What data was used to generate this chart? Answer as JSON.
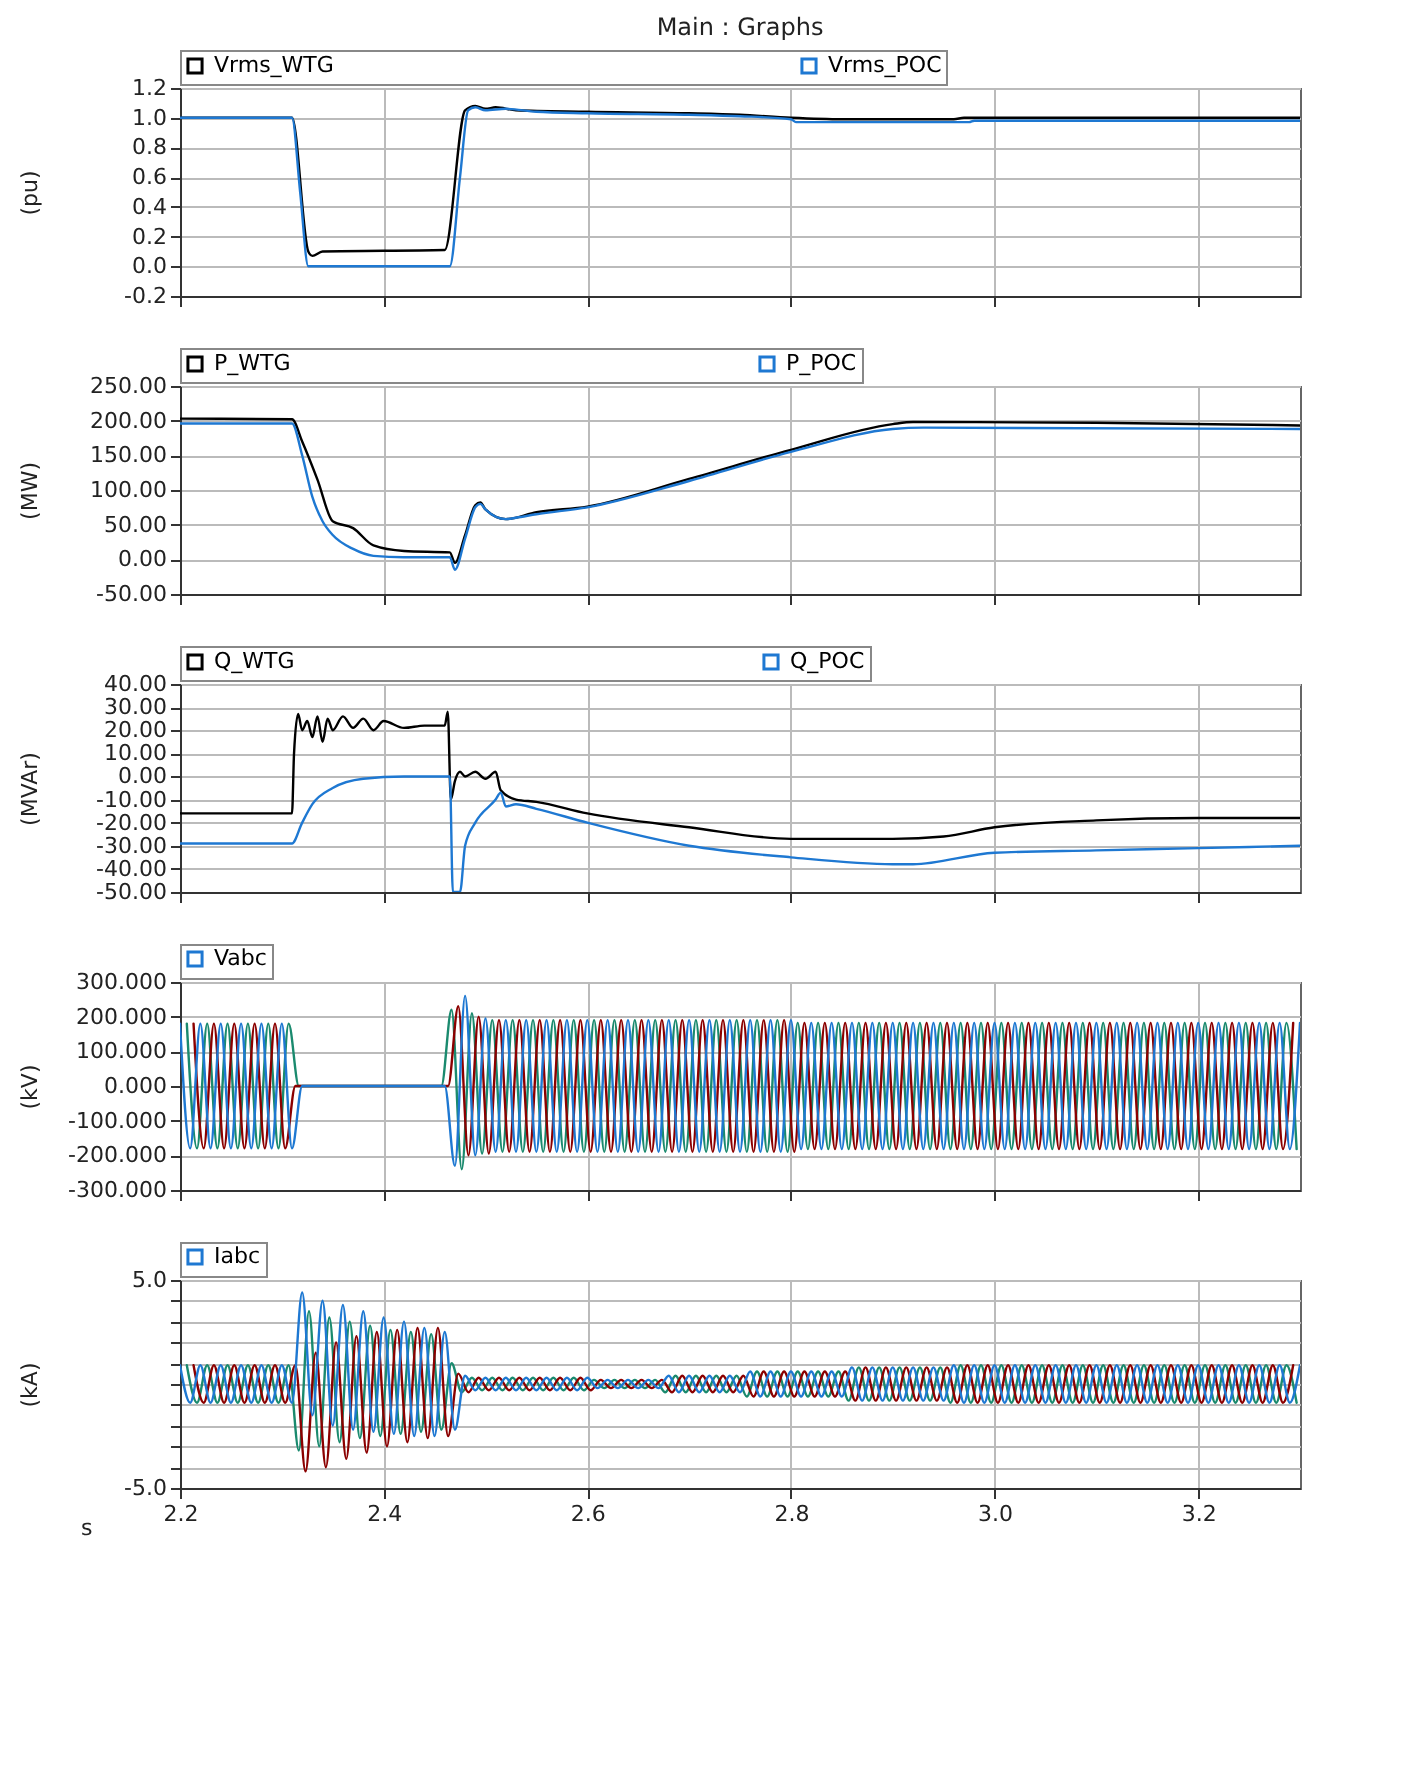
{
  "chart_data": [
    {
      "type": "line",
      "title": "Main : Graphs",
      "ylabel": "(pu)",
      "xlim": [
        2.2,
        3.3
      ],
      "xticks": [
        {
          "value": 2.2,
          "label": null
        },
        {
          "value": 2.4,
          "label": null
        },
        {
          "value": 2.6,
          "label": null
        },
        {
          "value": 2.8,
          "label": null
        },
        {
          "value": 3,
          "label": null
        },
        {
          "value": 3.2,
          "label": null
        }
      ],
      "ylim": [
        -0.2,
        1.2
      ],
      "yticks": [
        -0.2,
        {
          "value": 0,
          "label": "0.0"
        },
        0.2,
        0.4,
        0.6,
        0.8,
        {
          "value": 1,
          "label": "1.0"
        },
        1.2
      ],
      "grid": true,
      "legend": "top",
      "tick_labels": "y",
      "series": [
        {
          "name": "Vrms_WTG",
          "color": "#000000",
          "x": [
            2.2,
            2.31,
            2.326,
            2.33,
            2.34,
            2.46,
            2.48,
            2.49,
            2.5,
            2.51,
            2.53,
            2.6,
            2.7,
            2.75,
            2.8,
            2.85,
            2.96,
            2.97,
            3.3
          ],
          "values": [
            1.0,
            1.0,
            0.1,
            0.07,
            0.1,
            0.11,
            1.05,
            1.08,
            1.06,
            1.07,
            1.05,
            1.04,
            1.03,
            1.02,
            1.0,
            0.99,
            0.99,
            1.0,
            1.0
          ]
        },
        {
          "name": "Vrms_POC",
          "color": "#1e78d2",
          "x": [
            2.2,
            2.31,
            2.318,
            2.326,
            2.46,
            2.465,
            2.475,
            2.483,
            2.49,
            2.5,
            2.52,
            2.55,
            2.6,
            2.7,
            2.75,
            2.8,
            2.805,
            2.975,
            2.98,
            3.3
          ],
          "values": [
            1.0,
            1.0,
            0.5,
            0.0,
            0.0,
            0.0,
            0.6,
            1.05,
            1.07,
            1.05,
            1.06,
            1.04,
            1.03,
            1.02,
            1.01,
            0.99,
            0.97,
            0.97,
            0.98,
            0.98
          ]
        }
      ]
    },
    {
      "type": "line",
      "ylabel": "(MW)",
      "xlim": [
        2.2,
        3.3
      ],
      "xticks": [
        {
          "value": 2.2,
          "label": null
        },
        {
          "value": 2.4,
          "label": null
        },
        {
          "value": 2.6,
          "label": null
        },
        {
          "value": 2.8,
          "label": null
        },
        {
          "value": 3,
          "label": null
        },
        {
          "value": 3.2,
          "label": null
        }
      ],
      "ylim": [
        -50,
        250
      ],
      "yticks": [
        {
          "value": -50,
          "label": "-50.00"
        },
        {
          "value": 0,
          "label": "0.00"
        },
        {
          "value": 50,
          "label": "50.00"
        },
        {
          "value": 100,
          "label": "100.00"
        },
        {
          "value": 150,
          "label": "150.00"
        },
        {
          "value": 200,
          "label": "200.00"
        },
        {
          "value": 250,
          "label": "250.00"
        }
      ],
      "grid": true,
      "legend": "top",
      "tick_labels": "y",
      "series": [
        {
          "name": "P_WTG",
          "color": "#000000",
          "x": [
            2.2,
            2.31,
            2.32,
            2.335,
            2.35,
            2.37,
            2.39,
            2.42,
            2.465,
            2.47,
            2.48,
            2.49,
            2.495,
            2.5,
            2.52,
            2.55,
            2.6,
            2.7,
            2.8,
            2.9,
            2.92,
            3.1,
            3.3
          ],
          "values": [
            203,
            202,
            170,
            115,
            55,
            45,
            20,
            12,
            10,
            -5,
            35,
            78,
            82,
            72,
            58,
            68,
            76,
            116,
            158,
            195,
            198,
            197,
            193
          ]
        },
        {
          "name": "P_POC",
          "color": "#1e78d2",
          "x": [
            2.2,
            2.31,
            2.32,
            2.33,
            2.34,
            2.35,
            2.37,
            2.39,
            2.42,
            2.465,
            2.47,
            2.48,
            2.49,
            2.495,
            2.5,
            2.52,
            2.53,
            2.55,
            2.6,
            2.7,
            2.8,
            2.9,
            2.93,
            3.3
          ],
          "values": [
            196,
            196,
            150,
            90,
            55,
            35,
            15,
            5,
            3,
            3,
            -15,
            30,
            75,
            80,
            72,
            58,
            60,
            65,
            75,
            113,
            155,
            188,
            190,
            188
          ]
        }
      ]
    },
    {
      "type": "line",
      "ylabel": "(MVAr)",
      "xlim": [
        2.2,
        3.3
      ],
      "xticks": [
        {
          "value": 2.2,
          "label": null
        },
        {
          "value": 2.4,
          "label": null
        },
        {
          "value": 2.6,
          "label": null
        },
        {
          "value": 2.8,
          "label": null
        },
        {
          "value": 3,
          "label": null
        },
        {
          "value": 3.2,
          "label": null
        }
      ],
      "ylim": [
        -50,
        40
      ],
      "yticks": [
        {
          "value": -50,
          "label": "-50.00"
        },
        {
          "value": -40,
          "label": "-40.00"
        },
        {
          "value": -30,
          "label": "-30.00"
        },
        {
          "value": -20,
          "label": "-20.00"
        },
        {
          "value": -10,
          "label": "-10.00"
        },
        {
          "value": 0,
          "label": "0.00"
        },
        {
          "value": 10,
          "label": "10.00"
        },
        {
          "value": 20,
          "label": "20.00"
        },
        {
          "value": 30,
          "label": "30.00"
        },
        {
          "value": 40,
          "label": "40.00"
        }
      ],
      "grid": true,
      "legend": "top",
      "tick_labels": "y",
      "series": [
        {
          "name": "Q_WTG",
          "color": "#000000",
          "x": [
            2.2,
            2.31,
            2.312,
            2.316,
            2.32,
            2.325,
            2.33,
            2.335,
            2.34,
            2.345,
            2.35,
            2.36,
            2.37,
            2.38,
            2.39,
            2.4,
            2.42,
            2.44,
            2.46,
            2.463,
            2.466,
            2.47,
            2.475,
            2.48,
            2.49,
            2.5,
            2.51,
            2.515,
            2.53,
            2.55,
            2.6,
            2.7,
            2.8,
            2.9,
            2.95,
            3.0,
            3.1,
            3.2,
            3.3
          ],
          "values": [
            -16,
            -16,
            10,
            27,
            20,
            24,
            17,
            26,
            15,
            25,
            20,
            26,
            21,
            25,
            20,
            24,
            21,
            22,
            22,
            28,
            -10,
            -2,
            2,
            0,
            2,
            -1,
            2,
            -6,
            -10,
            -11,
            -16,
            -22,
            -27,
            -27,
            -26,
            -22,
            -19,
            -18,
            -18
          ]
        },
        {
          "name": "Q_POC",
          "color": "#1e78d2",
          "x": [
            2.2,
            2.31,
            2.32,
            2.33,
            2.35,
            2.38,
            2.42,
            2.465,
            2.468,
            2.475,
            2.48,
            2.49,
            2.51,
            2.515,
            2.52,
            2.53,
            2.55,
            2.6,
            2.7,
            2.8,
            2.9,
            2.92,
            3.0,
            3.1,
            3.2,
            3.3
          ],
          "values": [
            -29,
            -29,
            -20,
            -12,
            -5,
            -1,
            0,
            0,
            -50,
            -50,
            -30,
            -20,
            -10,
            -7,
            -13,
            -12,
            -14,
            -20,
            -30,
            -35,
            -38,
            -38,
            -33,
            -32,
            -31,
            -30
          ]
        }
      ]
    },
    {
      "type": "line",
      "ylabel": "(kV)",
      "xlim": [
        2.2,
        3.3
      ],
      "xticks": [
        {
          "value": 2.2,
          "label": null
        },
        {
          "value": 2.4,
          "label": null
        },
        {
          "value": 2.6,
          "label": null
        },
        {
          "value": 2.8,
          "label": null
        },
        {
          "value": 3,
          "label": null
        },
        {
          "value": 3.2,
          "label": null
        }
      ],
      "ylim": [
        -300,
        300
      ],
      "yticks": [
        {
          "value": -300,
          "label": "-300.000"
        },
        {
          "value": -200,
          "label": "-200.000"
        },
        {
          "value": -100,
          "label": "-100.000"
        },
        {
          "value": 0,
          "label": "0.000"
        },
        {
          "value": 100,
          "label": "100.000"
        },
        {
          "value": 200,
          "label": "200.000"
        },
        {
          "value": 300,
          "label": "300.000"
        }
      ],
      "grid": true,
      "legend": "top",
      "tick_labels": "y",
      "series": [
        {
          "color": "#1a8a6e",
          "x": [
            2.2067,
            2.2167,
            2.2267,
            2.2367,
            2.2467,
            2.2567,
            2.2667,
            2.2767,
            2.2867,
            2.2967,
            2.3067,
            2.3167,
            2.3267,
            2.3367,
            2.3467,
            2.3567,
            2.3667,
            2.3767,
            2.3867,
            2.3967,
            2.4067,
            2.4167,
            2.4267,
            2.4367,
            2.4467,
            2.4567,
            2.4667,
            2.4767,
            2.4867,
            2.4967,
            2.5067,
            2.5167,
            2.5267,
            2.5367,
            2.5467,
            2.5567,
            2.5667,
            2.5767,
            2.5867,
            2.5967,
            2.6067,
            2.6167,
            2.6267,
            2.6367,
            2.6467,
            2.6567,
            2.6667,
            2.6767,
            2.6867,
            2.6967,
            2.7067,
            2.7167,
            2.7267,
            2.7367,
            2.7467,
            2.7567,
            2.7667,
            2.7767,
            2.7867,
            2.7967,
            2.8067,
            2.8167,
            2.8267,
            2.8367,
            2.8467,
            2.8567,
            2.8667,
            2.8767,
            2.8867,
            2.8967,
            2.9067,
            2.9167,
            2.9267,
            2.9367,
            2.9467,
            2.9567,
            2.9667,
            2.9767,
            2.9867,
            2.9967,
            3.0067,
            3.0167,
            3.0267,
            3.0367,
            3.0467,
            3.0567,
            3.0667,
            3.0767,
            3.0867,
            3.0967,
            3.1067,
            3.1167,
            3.1267,
            3.1367,
            3.1467,
            3.1567,
            3.1667,
            3.1767,
            3.1867,
            3.1967,
            3.2067,
            3.2167,
            3.2267,
            3.2367,
            3.2467,
            3.2567,
            3.2667,
            3.2767,
            3.2867,
            3.2967
          ],
          "values": [
            180,
            -180,
            180,
            -180,
            180,
            -180,
            180,
            -180,
            180,
            -180,
            180,
            0,
            0,
            0,
            0,
            0,
            0,
            0,
            0,
            0,
            0,
            0,
            0,
            0,
            0,
            0,
            220,
            -240,
            210,
            -195,
            190,
            -190,
            190,
            -190,
            190,
            -190,
            190,
            -190,
            190,
            -190,
            190,
            -190,
            190,
            -190,
            190,
            -190,
            190,
            -190,
            190,
            -190,
            190,
            -190,
            190,
            -190,
            190,
            -190,
            190,
            -190,
            190,
            -190,
            182,
            -182,
            182,
            -182,
            182,
            -182,
            182,
            -182,
            182,
            -182,
            182,
            -182,
            182,
            -182,
            182,
            -182,
            182,
            -182,
            182,
            -182,
            182,
            -182,
            182,
            -182,
            182,
            -182,
            182,
            -182,
            182,
            -182,
            182,
            -182,
            182,
            -182,
            182,
            -182,
            182,
            -182,
            182,
            -182,
            182,
            -182,
            182,
            -182,
            182,
            -182,
            182,
            -182,
            182,
            -182
          ]
        },
        {
          "color": "#8b0000",
          "x": [
            2.2133,
            2.2233,
            2.2333,
            2.2433,
            2.2533,
            2.2633,
            2.2733,
            2.2833,
            2.2933,
            2.3033,
            2.3133,
            2.3233,
            2.3333,
            2.3433,
            2.3533,
            2.3633,
            2.3733,
            2.3833,
            2.3933,
            2.4033,
            2.4133,
            2.4233,
            2.4333,
            2.4433,
            2.4533,
            2.4633,
            2.4733,
            2.4833,
            2.4933,
            2.5033,
            2.5133,
            2.5233,
            2.5333,
            2.5433,
            2.5533,
            2.5633,
            2.5733,
            2.5833,
            2.5933,
            2.6033,
            2.6133,
            2.6233,
            2.6333,
            2.6433,
            2.6533,
            2.6633,
            2.6733,
            2.6833,
            2.6933,
            2.7033,
            2.7133,
            2.7233,
            2.7333,
            2.7433,
            2.7533,
            2.7633,
            2.7733,
            2.7833,
            2.7933,
            2.8033,
            2.8133,
            2.8233,
            2.8333,
            2.8433,
            2.8533,
            2.8633,
            2.8733,
            2.8833,
            2.8933,
            2.9033,
            2.9133,
            2.9233,
            2.9333,
            2.9433,
            2.9533,
            2.9633,
            2.9733,
            2.9833,
            2.9933,
            3.0033,
            3.0133,
            3.0233,
            3.0333,
            3.0433,
            3.0533,
            3.0633,
            3.0733,
            3.0833,
            3.0933,
            3.1033,
            3.1133,
            3.1233,
            3.1333,
            3.1433,
            3.1533,
            3.1633,
            3.1733,
            3.1833,
            3.1933,
            3.2033,
            3.2133,
            3.2233,
            3.2333,
            3.2433,
            3.2533,
            3.2633,
            3.2733,
            3.2833,
            3.2933
          ],
          "values": [
            180,
            -180,
            180,
            -180,
            180,
            -180,
            180,
            -180,
            180,
            -180,
            0,
            0,
            0,
            0,
            0,
            0,
            0,
            0,
            0,
            0,
            0,
            0,
            0,
            0,
            0,
            0,
            230,
            -200,
            200,
            -195,
            190,
            -190,
            190,
            -190,
            190,
            -190,
            190,
            -190,
            190,
            -190,
            190,
            -190,
            190,
            -190,
            190,
            -190,
            190,
            -190,
            190,
            -190,
            190,
            -190,
            190,
            -190,
            190,
            -190,
            190,
            -190,
            190,
            -190,
            182,
            -182,
            182,
            -182,
            182,
            -182,
            182,
            -182,
            182,
            -182,
            182,
            -182,
            182,
            -182,
            182,
            -182,
            182,
            -182,
            182,
            -182,
            182,
            -182,
            182,
            -182,
            182,
            -182,
            182,
            -182,
            182,
            -182,
            182,
            -182,
            182,
            -182,
            182,
            -182,
            182,
            -182,
            182,
            -182,
            182,
            -182,
            182,
            -182,
            182,
            -182,
            182,
            -182,
            182
          ]
        },
        {
          "name": "Vabc",
          "color": "#1e78d2",
          "x": [
            2.2,
            2.21,
            2.22,
            2.23,
            2.24,
            2.25,
            2.26,
            2.27,
            2.28,
            2.29,
            2.3,
            2.31,
            2.32,
            2.33,
            2.34,
            2.35,
            2.36,
            2.37,
            2.38,
            2.39,
            2.4,
            2.41,
            2.42,
            2.43,
            2.44,
            2.45,
            2.46,
            2.47,
            2.48,
            2.49,
            2.5,
            2.51,
            2.52,
            2.53,
            2.54,
            2.55,
            2.56,
            2.57,
            2.58,
            2.59,
            2.6,
            2.61,
            2.62,
            2.63,
            2.64,
            2.65,
            2.66,
            2.67,
            2.68,
            2.69,
            2.7,
            2.71,
            2.72,
            2.73,
            2.74,
            2.75,
            2.76,
            2.77,
            2.78,
            2.79,
            2.8,
            2.81,
            2.82,
            2.83,
            2.84,
            2.85,
            2.86,
            2.87,
            2.88,
            2.89,
            2.9,
            2.91,
            2.92,
            2.93,
            2.94,
            2.95,
            2.96,
            2.97,
            2.98,
            2.99,
            3.0,
            3.01,
            3.02,
            3.03,
            3.04,
            3.05,
            3.06,
            3.07,
            3.08,
            3.09,
            3.1,
            3.11,
            3.12,
            3.13,
            3.14,
            3.15,
            3.16,
            3.17,
            3.18,
            3.19,
            3.2,
            3.21,
            3.22,
            3.23,
            3.24,
            3.25,
            3.26,
            3.27,
            3.28,
            3.29,
            3.3
          ],
          "values": [
            180,
            -180,
            180,
            -180,
            180,
            -180,
            180,
            -180,
            180,
            -180,
            180,
            -180,
            0,
            0,
            0,
            0,
            0,
            0,
            0,
            0,
            0,
            0,
            0,
            0,
            0,
            0,
            0,
            -230,
            260,
            -200,
            195,
            -190,
            190,
            -190,
            190,
            -190,
            190,
            -190,
            190,
            -190,
            190,
            -190,
            190,
            -190,
            190,
            -190,
            190,
            -190,
            190,
            -190,
            190,
            -190,
            190,
            -190,
            190,
            -190,
            190,
            -190,
            190,
            -190,
            190,
            -182,
            182,
            -182,
            182,
            -182,
            182,
            -182,
            182,
            -182,
            182,
            -182,
            182,
            -182,
            182,
            -182,
            182,
            -182,
            182,
            -182,
            182,
            -182,
            182,
            -182,
            182,
            -182,
            182,
            -182,
            182,
            -182,
            182,
            -182,
            182,
            -182,
            182,
            -182,
            182,
            -182,
            182,
            -182,
            182,
            -182,
            182,
            -182,
            182,
            -182,
            182,
            -182,
            182,
            -182,
            182
          ]
        }
      ]
    },
    {
      "type": "line",
      "ylabel": "(kA)",
      "xlabel": "s",
      "xlim": [
        2.2,
        3.3
      ],
      "xticks": [
        2.2,
        2.4,
        2.6,
        2.8,
        {
          "value": 3,
          "label": "3.0"
        },
        3.2
      ],
      "ylim": [
        -5,
        5
      ],
      "yticks": [
        {
          "value": -5,
          "label": "-5.0"
        },
        {
          "value": -4,
          "label": null
        },
        {
          "value": -3,
          "label": null
        },
        {
          "value": -2,
          "label": null
        },
        {
          "value": -1,
          "label": null
        },
        {
          "value": 0,
          "label": null
        },
        {
          "value": 1,
          "label": null
        },
        {
          "value": 2,
          "label": null
        },
        {
          "value": 3,
          "label": null
        },
        {
          "value": 4,
          "label": null
        },
        {
          "value": 5,
          "label": "5.0"
        }
      ],
      "grid": true,
      "legend": "top",
      "series": [
        {
          "color": "#1a8a6e",
          "x": [
            2.2067,
            2.2167,
            2.2267,
            2.2367,
            2.2467,
            2.2567,
            2.2667,
            2.2767,
            2.2867,
            2.2967,
            2.3067,
            2.3167,
            2.3267,
            2.3367,
            2.3467,
            2.3567,
            2.3667,
            2.3767,
            2.3867,
            2.3967,
            2.4067,
            2.4167,
            2.4267,
            2.4367,
            2.4467,
            2.4567,
            2.4667,
            2.4767,
            2.4867,
            2.4967,
            2.5067,
            2.5167,
            2.5267,
            2.5367,
            2.5467,
            2.5567,
            2.5667,
            2.5767,
            2.5867,
            2.5967,
            2.6067,
            2.6167,
            2.6267,
            2.6367,
            2.6467,
            2.6567,
            2.6667,
            2.6767,
            2.6867,
            2.6967,
            2.7067,
            2.7167,
            2.7267,
            2.7367,
            2.7467,
            2.7567,
            2.7667,
            2.7767,
            2.7867,
            2.7967,
            2.8067,
            2.8167,
            2.8267,
            2.8367,
            2.8467,
            2.8567,
            2.8667,
            2.8767,
            2.8867,
            2.8967,
            2.9067,
            2.9167,
            2.9267,
            2.9367,
            2.9467,
            2.9567,
            2.9667,
            2.9767,
            2.9867,
            2.9967,
            3.0067,
            3.0167,
            3.0267,
            3.0367,
            3.0467,
            3.0567,
            3.0667,
            3.0767,
            3.0867,
            3.0967,
            3.1067,
            3.1167,
            3.1267,
            3.1367,
            3.1467,
            3.1567,
            3.1667,
            3.1767,
            3.1867,
            3.1967,
            3.2067,
            3.2167,
            3.2267,
            3.2367,
            3.2467,
            3.2567,
            3.2667,
            3.2767,
            3.2867,
            3.2967
          ],
          "values": [
            0.9,
            -0.9,
            0.9,
            -0.9,
            0.9,
            -0.9,
            0.9,
            -0.9,
            0.9,
            -0.9,
            0.9,
            -3.2,
            3.5,
            -3.0,
            3.2,
            -2.8,
            3.0,
            -2.6,
            2.8,
            -2.5,
            2.6,
            -2.4,
            2.5,
            -2.3,
            2.4,
            -2.2,
            1.0,
            -0.4,
            0.3,
            -0.3,
            0.3,
            -0.3,
            0.3,
            -0.3,
            0.3,
            -0.3,
            0.3,
            -0.3,
            0.3,
            -0.3,
            0.2,
            -0.2,
            0.2,
            -0.2,
            0.2,
            -0.2,
            0.2,
            -0.4,
            0.4,
            -0.4,
            0.4,
            -0.4,
            0.4,
            -0.4,
            0.4,
            -0.6,
            0.6,
            -0.6,
            0.6,
            -0.6,
            0.6,
            -0.6,
            0.6,
            -0.6,
            0.6,
            -0.8,
            0.8,
            -0.8,
            0.8,
            -0.8,
            0.8,
            -0.8,
            0.8,
            -0.8,
            0.8,
            -0.9,
            0.9,
            -0.9,
            0.9,
            -0.9,
            0.9,
            -0.9,
            0.9,
            -0.9,
            0.9,
            -0.9,
            0.9,
            -0.9,
            0.9,
            -0.9,
            0.9,
            -0.9,
            0.9,
            -0.9,
            0.9,
            -0.9,
            0.9,
            -0.9,
            0.9,
            -0.9,
            0.9,
            -0.9,
            0.9,
            -0.9,
            0.9,
            -0.9,
            0.9,
            -0.9,
            0.9,
            -0.9
          ]
        },
        {
          "color": "#8b0000",
          "x": [
            2.2133,
            2.2233,
            2.2333,
            2.2433,
            2.2533,
            2.2633,
            2.2733,
            2.2833,
            2.2933,
            2.3033,
            2.3133,
            2.3233,
            2.3333,
            2.3433,
            2.3533,
            2.3633,
            2.3733,
            2.3833,
            2.3933,
            2.4033,
            2.4133,
            2.4233,
            2.4333,
            2.4433,
            2.4533,
            2.4633,
            2.4733,
            2.4833,
            2.4933,
            2.5033,
            2.5133,
            2.5233,
            2.5333,
            2.5433,
            2.5533,
            2.5633,
            2.5733,
            2.5833,
            2.5933,
            2.6033,
            2.6133,
            2.6233,
            2.6333,
            2.6433,
            2.6533,
            2.6633,
            2.6733,
            2.6833,
            2.6933,
            2.7033,
            2.7133,
            2.7233,
            2.7333,
            2.7433,
            2.7533,
            2.7633,
            2.7733,
            2.7833,
            2.7933,
            2.8033,
            2.8133,
            2.8233,
            2.8333,
            2.8433,
            2.8533,
            2.8633,
            2.8733,
            2.8833,
            2.8933,
            2.9033,
            2.9133,
            2.9233,
            2.9333,
            2.9433,
            2.9533,
            2.9633,
            2.9733,
            2.9833,
            2.9933,
            3.0033,
            3.0133,
            3.0233,
            3.0333,
            3.0433,
            3.0533,
            3.0633,
            3.0733,
            3.0833,
            3.0933,
            3.1033,
            3.1133,
            3.1233,
            3.1333,
            3.1433,
            3.1533,
            3.1633,
            3.1733,
            3.1833,
            3.1933,
            3.2033,
            3.2133,
            3.2233,
            3.2333,
            3.2433,
            3.2533,
            3.2633,
            3.2733,
            3.2833,
            3.2933
          ],
          "values": [
            0.9,
            -0.9,
            0.9,
            -0.9,
            0.9,
            -0.9,
            0.9,
            -0.9,
            0.9,
            -0.9,
            0.9,
            -4.2,
            1.5,
            -4.0,
            2.0,
            -3.6,
            2.3,
            -3.3,
            2.5,
            -3.0,
            2.6,
            -2.8,
            2.7,
            -2.6,
            2.7,
            -2.5,
            0.5,
            -0.4,
            0.3,
            -0.3,
            0.3,
            -0.3,
            0.3,
            -0.3,
            0.3,
            -0.3,
            0.3,
            -0.3,
            0.3,
            -0.3,
            0.2,
            -0.2,
            0.2,
            -0.2,
            0.2,
            -0.2,
            0.2,
            -0.4,
            0.4,
            -0.4,
            0.4,
            -0.4,
            0.4,
            -0.4,
            0.4,
            -0.6,
            0.6,
            -0.6,
            0.6,
            -0.6,
            0.6,
            -0.6,
            0.6,
            -0.6,
            0.6,
            -0.8,
            0.8,
            -0.8,
            0.8,
            -0.8,
            0.8,
            -0.8,
            0.8,
            -0.8,
            0.8,
            -0.9,
            0.9,
            -0.9,
            0.9,
            -0.9,
            0.9,
            -0.9,
            0.9,
            -0.9,
            0.9,
            -0.9,
            0.9,
            -0.9,
            0.9,
            -0.9,
            0.9,
            -0.9,
            0.9,
            -0.9,
            0.9,
            -0.9,
            0.9,
            -0.9,
            0.9,
            -0.9,
            0.9,
            -0.9,
            0.9,
            -0.9,
            0.9,
            -0.9,
            0.9,
            -0.9,
            0.9
          ]
        },
        {
          "name": "Iabc",
          "color": "#1e78d2",
          "x": [
            2.2,
            2.21,
            2.22,
            2.23,
            2.24,
            2.25,
            2.26,
            2.27,
            2.28,
            2.29,
            2.3,
            2.31,
            2.32,
            2.33,
            2.34,
            2.35,
            2.36,
            2.37,
            2.38,
            2.39,
            2.4,
            2.41,
            2.42,
            2.43,
            2.44,
            2.45,
            2.46,
            2.47,
            2.48,
            2.49,
            2.5,
            2.51,
            2.52,
            2.53,
            2.54,
            2.55,
            2.56,
            2.57,
            2.58,
            2.59,
            2.6,
            2.61,
            2.62,
            2.63,
            2.64,
            2.65,
            2.66,
            2.67,
            2.68,
            2.69,
            2.7,
            2.71,
            2.72,
            2.73,
            2.74,
            2.75,
            2.76,
            2.77,
            2.78,
            2.79,
            2.8,
            2.81,
            2.82,
            2.83,
            2.84,
            2.85,
            2.86,
            2.87,
            2.88,
            2.89,
            2.9,
            2.91,
            2.92,
            2.93,
            2.94,
            2.95,
            2.96,
            2.97,
            2.98,
            2.99,
            3.0,
            3.01,
            3.02,
            3.03,
            3.04,
            3.05,
            3.06,
            3.07,
            3.08,
            3.09,
            3.1,
            3.11,
            3.12,
            3.13,
            3.14,
            3.15,
            3.16,
            3.17,
            3.18,
            3.19,
            3.2,
            3.21,
            3.22,
            3.23,
            3.24,
            3.25,
            3.26,
            3.27,
            3.28,
            3.29,
            3.3
          ],
          "values": [
            0.9,
            -0.9,
            0.9,
            -0.9,
            0.9,
            -0.9,
            0.9,
            -0.9,
            0.9,
            -0.9,
            0.9,
            -0.9,
            4.4,
            -1.5,
            4.0,
            -2.0,
            3.8,
            -2.2,
            3.5,
            -2.3,
            3.2,
            -2.4,
            3.0,
            -2.5,
            2.7,
            -2.5,
            2.5,
            -2.2,
            0.4,
            -0.3,
            0.3,
            -0.3,
            0.3,
            -0.3,
            0.3,
            -0.3,
            0.3,
            -0.3,
            0.3,
            -0.3,
            0.3,
            -0.2,
            0.2,
            -0.2,
            0.2,
            -0.2,
            0.2,
            -0.2,
            0.4,
            -0.4,
            0.4,
            -0.4,
            0.4,
            -0.4,
            0.4,
            -0.4,
            0.6,
            -0.6,
            0.6,
            -0.6,
            0.6,
            -0.6,
            0.6,
            -0.6,
            0.6,
            -0.6,
            0.8,
            -0.8,
            0.8,
            -0.8,
            0.8,
            -0.8,
            0.8,
            -0.8,
            0.8,
            -0.8,
            0.9,
            -0.9,
            0.9,
            -0.9,
            0.9,
            -0.9,
            0.9,
            -0.9,
            0.9,
            -0.9,
            0.9,
            -0.9,
            0.9,
            -0.9,
            0.9,
            -0.9,
            0.9,
            -0.9,
            0.9,
            -0.9,
            0.9,
            -0.9,
            0.9,
            -0.9,
            0.9,
            -0.9,
            0.9,
            -0.9,
            0.9,
            -0.9,
            0.9,
            -0.9,
            0.9,
            -0.9,
            0.9
          ]
        }
      ]
    }
  ]
}
